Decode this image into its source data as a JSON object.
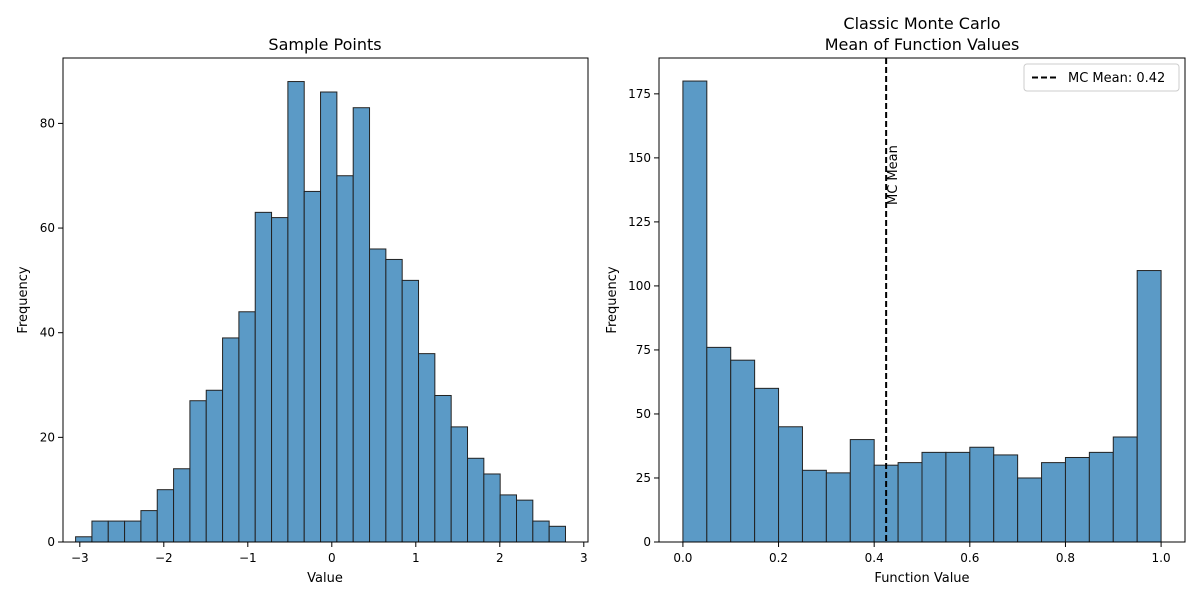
{
  "chart_data": [
    {
      "type": "bar",
      "title": "Sample Points",
      "xlabel": "Value",
      "ylabel": "Frequency",
      "xlim": [
        -3.2,
        3.05
      ],
      "ylim": [
        0,
        92.5
      ],
      "xticks": [
        -3,
        -2,
        -1,
        0,
        1,
        2,
        3
      ],
      "yticks": [
        0,
        20,
        40,
        60,
        80
      ],
      "bin_start": -3.05,
      "bin_width": 0.1944,
      "values": [
        1,
        4,
        4,
        4,
        6,
        10,
        14,
        27,
        29,
        39,
        44,
        63,
        62,
        88,
        67,
        86,
        70,
        83,
        56,
        54,
        50,
        36,
        28,
        22,
        16,
        13,
        9,
        8,
        4,
        3
      ],
      "grid": false,
      "color": "#5b9ac6"
    },
    {
      "type": "bar",
      "title": "Classic Monte Carlo\nMean of Function Values",
      "title_lines": [
        "Classic Monte Carlo",
        "Mean of Function Values"
      ],
      "xlabel": "Function Value",
      "ylabel": "Frequency",
      "xlim": [
        -0.05,
        1.05
      ],
      "ylim": [
        0,
        189
      ],
      "xticks": [
        0.0,
        0.2,
        0.4,
        0.6,
        0.8,
        1.0
      ],
      "xtick_labels": [
        "0.0",
        "0.2",
        "0.4",
        "0.6",
        "0.8",
        "1.0"
      ],
      "yticks": [
        0,
        25,
        50,
        75,
        100,
        125,
        150,
        175
      ],
      "bin_start": 0.0,
      "bin_width": 0.05,
      "values": [
        180,
        76,
        71,
        60,
        45,
        28,
        27,
        40,
        30,
        31,
        35,
        35,
        37,
        34,
        25,
        31,
        33,
        35,
        41,
        106
      ],
      "mean_line": {
        "x": 0.425,
        "label": "MC Mean"
      },
      "legend": {
        "entries": [
          "MC Mean: 0.42"
        ],
        "placement": "top-right"
      },
      "grid": false,
      "color": "#5b9ac6"
    }
  ]
}
